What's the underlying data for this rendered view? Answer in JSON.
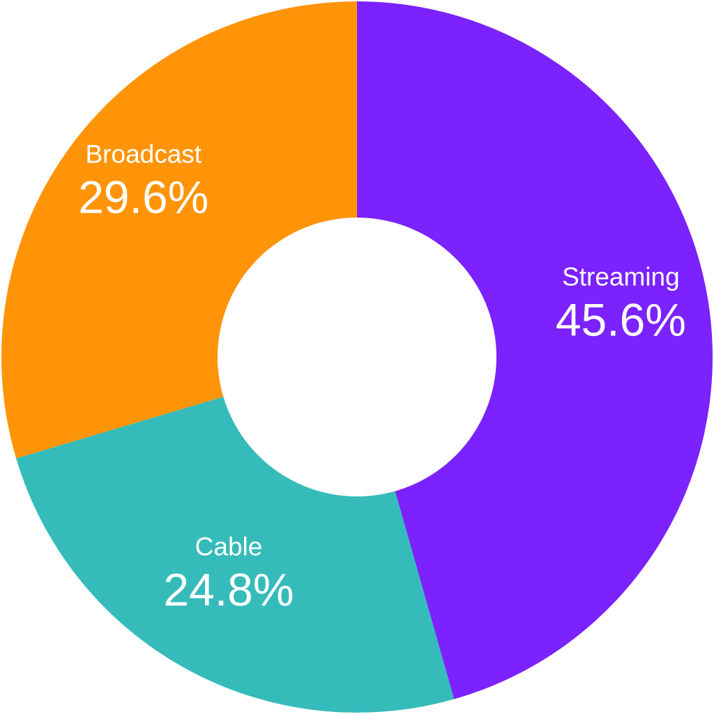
{
  "chart_data": {
    "type": "pie",
    "donut": true,
    "start_angle_deg": 0,
    "direction": "clockwise",
    "slices": [
      {
        "label": "Streaming",
        "value": 45.6,
        "display_value": "45.6%",
        "color": "#7B22FF"
      },
      {
        "label": "Cable",
        "value": 24.8,
        "display_value": "24.8%",
        "color": "#35BBBA"
      },
      {
        "label": "Broadcast",
        "value": 29.6,
        "display_value": "29.6%",
        "color": "#FF9409"
      }
    ]
  }
}
